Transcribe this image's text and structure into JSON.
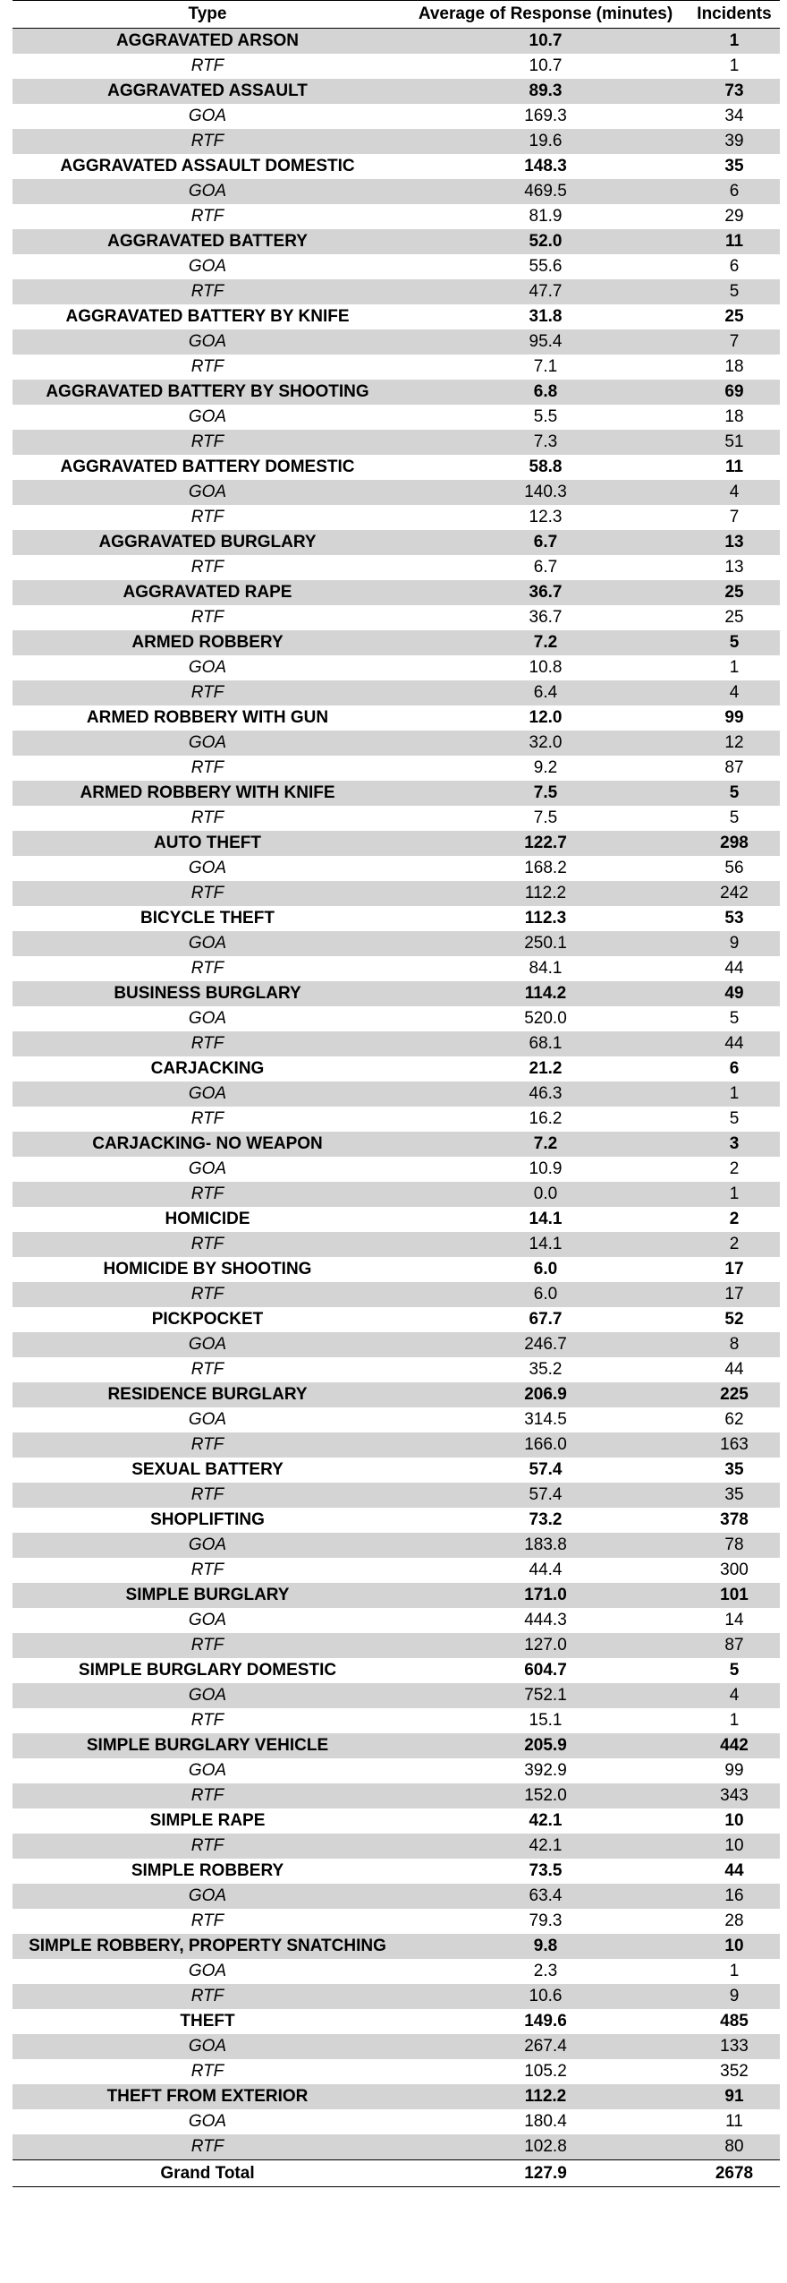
{
  "headers": {
    "type": "Type",
    "avg": "Average of Response (minutes)",
    "incidents": "Incidents"
  },
  "rows": [
    {
      "type": "AGGRAVATED ARSON",
      "avg": "10.7",
      "incidents": "1",
      "level": "parent"
    },
    {
      "type": "RTF",
      "avg": "10.7",
      "incidents": "1",
      "level": "child"
    },
    {
      "type": "AGGRAVATED ASSAULT",
      "avg": "89.3",
      "incidents": "73",
      "level": "parent"
    },
    {
      "type": "GOA",
      "avg": "169.3",
      "incidents": "34",
      "level": "child"
    },
    {
      "type": "RTF",
      "avg": "19.6",
      "incidents": "39",
      "level": "child"
    },
    {
      "type": "AGGRAVATED ASSAULT DOMESTIC",
      "avg": "148.3",
      "incidents": "35",
      "level": "parent"
    },
    {
      "type": "GOA",
      "avg": "469.5",
      "incidents": "6",
      "level": "child"
    },
    {
      "type": "RTF",
      "avg": "81.9",
      "incidents": "29",
      "level": "child"
    },
    {
      "type": "AGGRAVATED BATTERY",
      "avg": "52.0",
      "incidents": "11",
      "level": "parent"
    },
    {
      "type": "GOA",
      "avg": "55.6",
      "incidents": "6",
      "level": "child"
    },
    {
      "type": "RTF",
      "avg": "47.7",
      "incidents": "5",
      "level": "child"
    },
    {
      "type": "AGGRAVATED BATTERY BY KNIFE",
      "avg": "31.8",
      "incidents": "25",
      "level": "parent"
    },
    {
      "type": "GOA",
      "avg": "95.4",
      "incidents": "7",
      "level": "child"
    },
    {
      "type": "RTF",
      "avg": "7.1",
      "incidents": "18",
      "level": "child"
    },
    {
      "type": "AGGRAVATED BATTERY BY SHOOTING",
      "avg": "6.8",
      "incidents": "69",
      "level": "parent"
    },
    {
      "type": "GOA",
      "avg": "5.5",
      "incidents": "18",
      "level": "child"
    },
    {
      "type": "RTF",
      "avg": "7.3",
      "incidents": "51",
      "level": "child"
    },
    {
      "type": "AGGRAVATED BATTERY DOMESTIC",
      "avg": "58.8",
      "incidents": "11",
      "level": "parent"
    },
    {
      "type": "GOA",
      "avg": "140.3",
      "incidents": "4",
      "level": "child"
    },
    {
      "type": "RTF",
      "avg": "12.3",
      "incidents": "7",
      "level": "child"
    },
    {
      "type": "AGGRAVATED BURGLARY",
      "avg": "6.7",
      "incidents": "13",
      "level": "parent"
    },
    {
      "type": "RTF",
      "avg": "6.7",
      "incidents": "13",
      "level": "child"
    },
    {
      "type": "AGGRAVATED RAPE",
      "avg": "36.7",
      "incidents": "25",
      "level": "parent"
    },
    {
      "type": "RTF",
      "avg": "36.7",
      "incidents": "25",
      "level": "child"
    },
    {
      "type": "ARMED ROBBERY",
      "avg": "7.2",
      "incidents": "5",
      "level": "parent"
    },
    {
      "type": "GOA",
      "avg": "10.8",
      "incidents": "1",
      "level": "child"
    },
    {
      "type": "RTF",
      "avg": "6.4",
      "incidents": "4",
      "level": "child"
    },
    {
      "type": "ARMED ROBBERY WITH GUN",
      "avg": "12.0",
      "incidents": "99",
      "level": "parent"
    },
    {
      "type": "GOA",
      "avg": "32.0",
      "incidents": "12",
      "level": "child"
    },
    {
      "type": "RTF",
      "avg": "9.2",
      "incidents": "87",
      "level": "child"
    },
    {
      "type": "ARMED ROBBERY WITH KNIFE",
      "avg": "7.5",
      "incidents": "5",
      "level": "parent"
    },
    {
      "type": "RTF",
      "avg": "7.5",
      "incidents": "5",
      "level": "child"
    },
    {
      "type": "AUTO THEFT",
      "avg": "122.7",
      "incidents": "298",
      "level": "parent"
    },
    {
      "type": "GOA",
      "avg": "168.2",
      "incidents": "56",
      "level": "child"
    },
    {
      "type": "RTF",
      "avg": "112.2",
      "incidents": "242",
      "level": "child"
    },
    {
      "type": "BICYCLE THEFT",
      "avg": "112.3",
      "incidents": "53",
      "level": "parent"
    },
    {
      "type": "GOA",
      "avg": "250.1",
      "incidents": "9",
      "level": "child"
    },
    {
      "type": "RTF",
      "avg": "84.1",
      "incidents": "44",
      "level": "child"
    },
    {
      "type": "BUSINESS BURGLARY",
      "avg": "114.2",
      "incidents": "49",
      "level": "parent"
    },
    {
      "type": "GOA",
      "avg": "520.0",
      "incidents": "5",
      "level": "child"
    },
    {
      "type": "RTF",
      "avg": "68.1",
      "incidents": "44",
      "level": "child"
    },
    {
      "type": "CARJACKING",
      "avg": "21.2",
      "incidents": "6",
      "level": "parent"
    },
    {
      "type": "GOA",
      "avg": "46.3",
      "incidents": "1",
      "level": "child"
    },
    {
      "type": "RTF",
      "avg": "16.2",
      "incidents": "5",
      "level": "child"
    },
    {
      "type": "CARJACKING- NO WEAPON",
      "avg": "7.2",
      "incidents": "3",
      "level": "parent"
    },
    {
      "type": "GOA",
      "avg": "10.9",
      "incidents": "2",
      "level": "child"
    },
    {
      "type": "RTF",
      "avg": "0.0",
      "incidents": "1",
      "level": "child"
    },
    {
      "type": "HOMICIDE",
      "avg": "14.1",
      "incidents": "2",
      "level": "parent"
    },
    {
      "type": "RTF",
      "avg": "14.1",
      "incidents": "2",
      "level": "child"
    },
    {
      "type": "HOMICIDE BY SHOOTING",
      "avg": "6.0",
      "incidents": "17",
      "level": "parent"
    },
    {
      "type": "RTF",
      "avg": "6.0",
      "incidents": "17",
      "level": "child"
    },
    {
      "type": "PICKPOCKET",
      "avg": "67.7",
      "incidents": "52",
      "level": "parent"
    },
    {
      "type": "GOA",
      "avg": "246.7",
      "incidents": "8",
      "level": "child"
    },
    {
      "type": "RTF",
      "avg": "35.2",
      "incidents": "44",
      "level": "child"
    },
    {
      "type": "RESIDENCE BURGLARY",
      "avg": "206.9",
      "incidents": "225",
      "level": "parent"
    },
    {
      "type": "GOA",
      "avg": "314.5",
      "incidents": "62",
      "level": "child"
    },
    {
      "type": "RTF",
      "avg": "166.0",
      "incidents": "163",
      "level": "child"
    },
    {
      "type": "SEXUAL BATTERY",
      "avg": "57.4",
      "incidents": "35",
      "level": "parent"
    },
    {
      "type": "RTF",
      "avg": "57.4",
      "incidents": "35",
      "level": "child"
    },
    {
      "type": "SHOPLIFTING",
      "avg": "73.2",
      "incidents": "378",
      "level": "parent"
    },
    {
      "type": "GOA",
      "avg": "183.8",
      "incidents": "78",
      "level": "child"
    },
    {
      "type": "RTF",
      "avg": "44.4",
      "incidents": "300",
      "level": "child"
    },
    {
      "type": "SIMPLE BURGLARY",
      "avg": "171.0",
      "incidents": "101",
      "level": "parent"
    },
    {
      "type": "GOA",
      "avg": "444.3",
      "incidents": "14",
      "level": "child"
    },
    {
      "type": "RTF",
      "avg": "127.0",
      "incidents": "87",
      "level": "child"
    },
    {
      "type": "SIMPLE BURGLARY DOMESTIC",
      "avg": "604.7",
      "incidents": "5",
      "level": "parent"
    },
    {
      "type": "GOA",
      "avg": "752.1",
      "incidents": "4",
      "level": "child"
    },
    {
      "type": "RTF",
      "avg": "15.1",
      "incidents": "1",
      "level": "child"
    },
    {
      "type": "SIMPLE BURGLARY VEHICLE",
      "avg": "205.9",
      "incidents": "442",
      "level": "parent"
    },
    {
      "type": "GOA",
      "avg": "392.9",
      "incidents": "99",
      "level": "child"
    },
    {
      "type": "RTF",
      "avg": "152.0",
      "incidents": "343",
      "level": "child"
    },
    {
      "type": "SIMPLE RAPE",
      "avg": "42.1",
      "incidents": "10",
      "level": "parent"
    },
    {
      "type": "RTF",
      "avg": "42.1",
      "incidents": "10",
      "level": "child"
    },
    {
      "type": "SIMPLE ROBBERY",
      "avg": "73.5",
      "incidents": "44",
      "level": "parent"
    },
    {
      "type": "GOA",
      "avg": "63.4",
      "incidents": "16",
      "level": "child"
    },
    {
      "type": "RTF",
      "avg": "79.3",
      "incidents": "28",
      "level": "child"
    },
    {
      "type": "SIMPLE ROBBERY, PROPERTY SNATCHING",
      "avg": "9.8",
      "incidents": "10",
      "level": "parent"
    },
    {
      "type": "GOA",
      "avg": "2.3",
      "incidents": "1",
      "level": "child"
    },
    {
      "type": "RTF",
      "avg": "10.6",
      "incidents": "9",
      "level": "child"
    },
    {
      "type": "THEFT",
      "avg": "149.6",
      "incidents": "485",
      "level": "parent"
    },
    {
      "type": "GOA",
      "avg": "267.4",
      "incidents": "133",
      "level": "child"
    },
    {
      "type": "RTF",
      "avg": "105.2",
      "incidents": "352",
      "level": "child"
    },
    {
      "type": "THEFT FROM EXTERIOR",
      "avg": "112.2",
      "incidents": "91",
      "level": "parent"
    },
    {
      "type": "GOA",
      "avg": "180.4",
      "incidents": "11",
      "level": "child"
    },
    {
      "type": "RTF",
      "avg": "102.8",
      "incidents": "80",
      "level": "child"
    }
  ],
  "total": {
    "type": "Grand Total",
    "avg": "127.9",
    "incidents": "2678"
  },
  "colors": {
    "row_shade": "#d4d4d4",
    "row_plain": "#ffffff",
    "rule": "#000000"
  }
}
